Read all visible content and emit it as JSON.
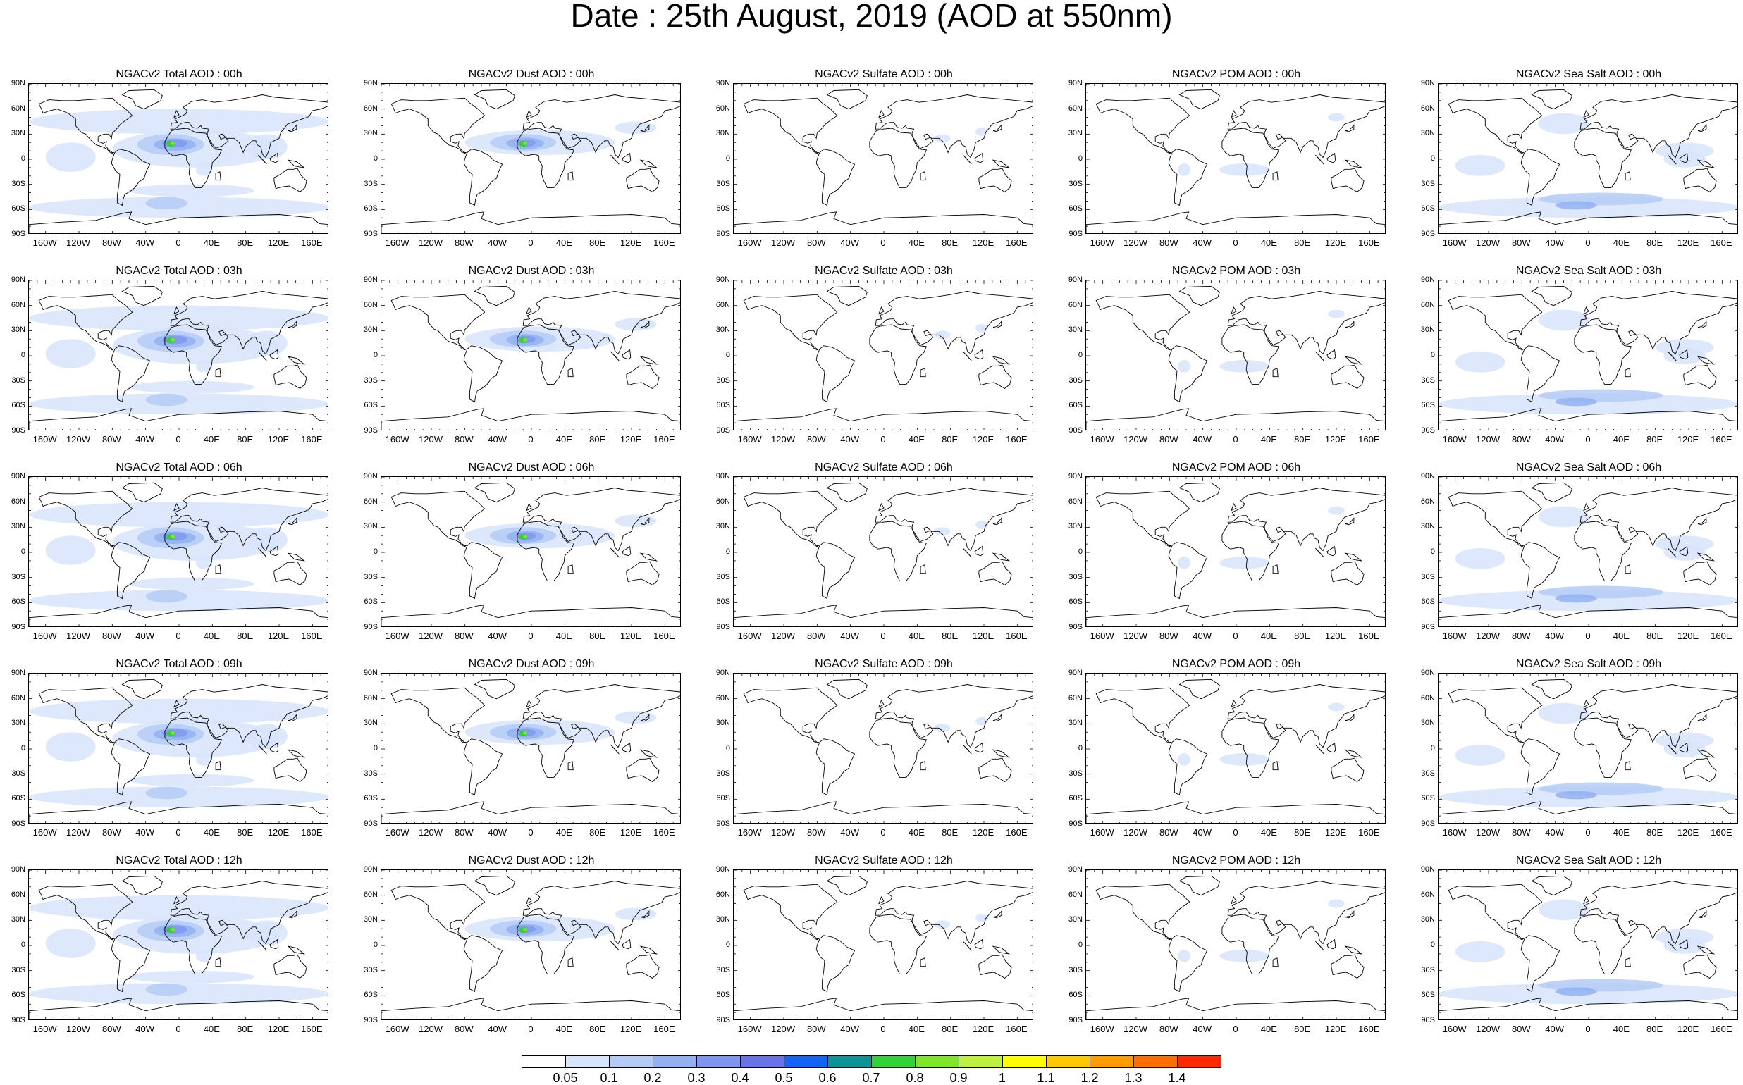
{
  "title": "Date : 25th August, 2019 (AOD at 550nm)",
  "lat_ticks": [
    "90N",
    "60N",
    "30N",
    "0",
    "30S",
    "60S",
    "90S"
  ],
  "lon_ticks": [
    "160W",
    "120W",
    "80W",
    "40W",
    "0",
    "40E",
    "80E",
    "120E",
    "160E"
  ],
  "panels": [
    {
      "title": "NGACv2 Total AOD : 00h",
      "species": "total"
    },
    {
      "title": "NGACv2 Dust AOD : 00h",
      "species": "dust"
    },
    {
      "title": "NGACv2 Sulfate AOD : 00h",
      "species": "sulfate"
    },
    {
      "title": "NGACv2 POM AOD : 00h",
      "species": "pom"
    },
    {
      "title": "NGACv2 Sea Salt AOD : 00h",
      "species": "seasalt"
    },
    {
      "title": "NGACv2 Total AOD : 03h",
      "species": "total"
    },
    {
      "title": "NGACv2 Dust AOD : 03h",
      "species": "dust"
    },
    {
      "title": "NGACv2 Sulfate AOD : 03h",
      "species": "sulfate"
    },
    {
      "title": "NGACv2 POM AOD : 03h",
      "species": "pom"
    },
    {
      "title": "NGACv2 Sea Salt AOD : 03h",
      "species": "seasalt"
    },
    {
      "title": "NGACv2 Total AOD : 06h",
      "species": "total"
    },
    {
      "title": "NGACv2 Dust AOD : 06h",
      "species": "dust"
    },
    {
      "title": "NGACv2 Sulfate AOD : 06h",
      "species": "sulfate"
    },
    {
      "title": "NGACv2 POM AOD : 06h",
      "species": "pom"
    },
    {
      "title": "NGACv2 Sea Salt AOD : 06h",
      "species": "seasalt"
    },
    {
      "title": "NGACv2 Total AOD : 09h",
      "species": "total"
    },
    {
      "title": "NGACv2 Dust AOD : 09h",
      "species": "dust"
    },
    {
      "title": "NGACv2 Sulfate AOD : 09h",
      "species": "sulfate"
    },
    {
      "title": "NGACv2 POM AOD : 09h",
      "species": "pom"
    },
    {
      "title": "NGACv2 Sea Salt  AOD : 09h",
      "species": "seasalt"
    },
    {
      "title": "NGACv2 Total AOD  : 12h",
      "species": "total"
    },
    {
      "title": "NGACv2 Dust AOD : 12h",
      "species": "dust"
    },
    {
      "title": "NGACv2 Sulfate AOD : 12h",
      "species": "sulfate"
    },
    {
      "title": "NGACv2 POM  AOD : 12h",
      "species": "pom"
    },
    {
      "title": "NGACv2 Sea Salt AOD : 12h",
      "species": "seasalt"
    }
  ],
  "colorbar": {
    "labels": [
      "0.05",
      "0.1",
      "0.2",
      "0.3",
      "0.4",
      "0.5",
      "0.6",
      "0.7",
      "0.8",
      "0.9",
      "1",
      "1.1",
      "1.2",
      "1.3",
      "1.4"
    ],
    "colors": [
      "#ffffff",
      "#d8e4fb",
      "#b4cbf6",
      "#93b1f2",
      "#7f96ee",
      "#6a72e8",
      "#1464f5",
      "#0b9398",
      "#32d238",
      "#80e62a",
      "#c0f040",
      "#fffd00",
      "#ffc800",
      "#ff9a00",
      "#ff6e00",
      "#ff2800"
    ]
  }
}
